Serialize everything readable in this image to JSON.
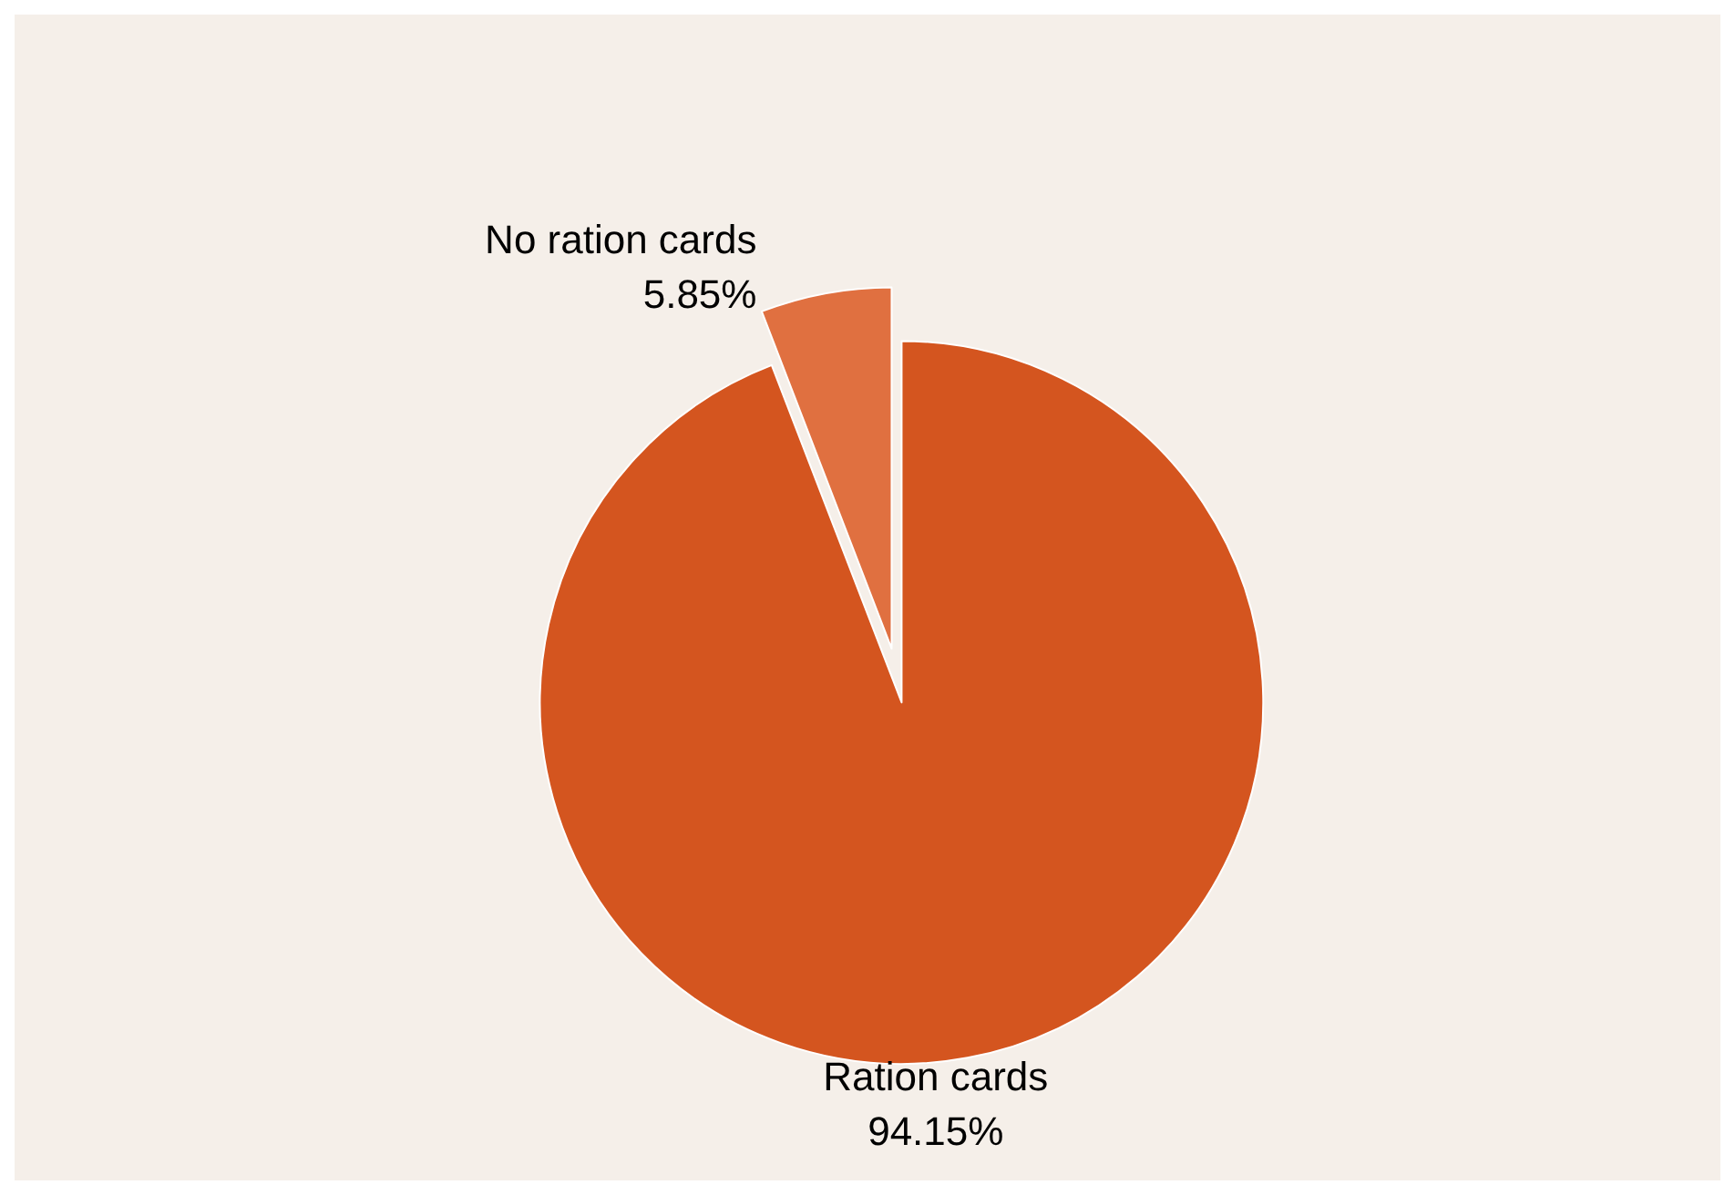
{
  "chart_data": {
    "type": "pie",
    "categories": [
      "Ration cards",
      "No ration cards"
    ],
    "values": [
      94.15,
      5.85
    ],
    "colors": [
      "#d4551f",
      "#e07040"
    ],
    "value_labels": [
      "94.15%",
      "5.85%"
    ],
    "legend": false
  }
}
